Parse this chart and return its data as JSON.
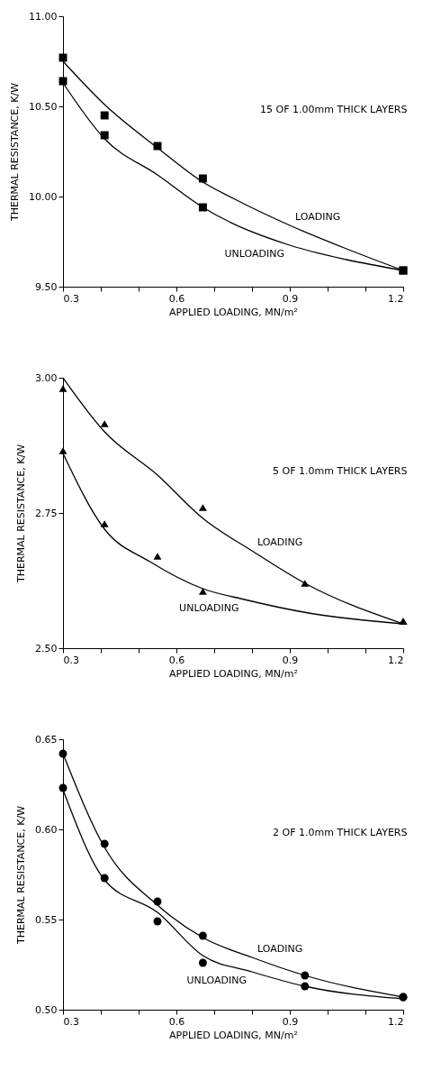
{
  "chart_data": [
    {
      "type": "scatter",
      "title": "15 OF 1.00mm THICK LAYERS",
      "xlabel": "APPLIED LOADING, MN/m²",
      "ylabel": "THERMAL RESISTANCE, K/W",
      "xlim": [
        0.3,
        1.2
      ],
      "ylim": [
        9.5,
        11.0
      ],
      "xticks": [
        0.3,
        {
          "value": 0.4,
          "label": null
        },
        {
          "value": 0.5,
          "label": null
        },
        0.6,
        {
          "value": 0.7,
          "label": null
        },
        {
          "value": 0.8,
          "label": null
        },
        0.9,
        {
          "value": 1.0,
          "label": null
        },
        {
          "value": 1.1,
          "label": null
        },
        1.2
      ],
      "yticks": [
        {
          "value": 9.5,
          "label": "9.50"
        },
        {
          "value": 10.0,
          "label": "10.00"
        },
        {
          "value": 10.5,
          "label": "10.50"
        },
        {
          "value": 11.0,
          "label": "11.00"
        }
      ],
      "series": [
        {
          "marker": "square",
          "color": "#000000",
          "x": [
            0.3,
            0.41,
            0.55,
            0.67,
            1.2
          ],
          "values": [
            10.77,
            10.45,
            10.28,
            10.1,
            9.59
          ]
        },
        {
          "marker": "square",
          "color": "#000000",
          "x": [
            0.3,
            0.41,
            0.67,
            1.2
          ],
          "values": [
            10.64,
            10.34,
            9.94,
            9.59
          ]
        },
        {
          "type": "line",
          "marker": "none",
          "name": "LOADING",
          "color": "#000000",
          "x": [
            0.3,
            0.41,
            0.55,
            0.67,
            0.75,
            0.9,
            1.05,
            1.2
          ],
          "values": [
            10.75,
            10.51,
            10.27,
            10.08,
            9.99,
            9.84,
            9.71,
            9.59
          ]
        },
        {
          "type": "line",
          "marker": "none",
          "name": "UNLOADING",
          "color": "#000000",
          "x": [
            0.3,
            0.41,
            0.55,
            0.67,
            0.9,
            1.05,
            1.2
          ],
          "values": [
            10.63,
            10.32,
            10.12,
            9.94,
            9.73,
            9.65,
            9.59
          ]
        }
      ]
    },
    {
      "type": "scatter",
      "title": "5 OF 1.0mm THICK LAYERS",
      "xlabel": "APPLIED LOADING, MN/m²",
      "ylabel": "THERMAL RESISTANCE, K/W",
      "xlim": [
        0.3,
        1.2
      ],
      "ylim": [
        2.5,
        3.0
      ],
      "xticks": [
        0.3,
        {
          "value": 0.4,
          "label": null
        },
        {
          "value": 0.5,
          "label": null
        },
        0.6,
        {
          "value": 0.7,
          "label": null
        },
        {
          "value": 0.8,
          "label": null
        },
        0.9,
        {
          "value": 1.0,
          "label": null
        },
        {
          "value": 1.1,
          "label": null
        },
        1.2
      ],
      "yticks": [
        {
          "value": 2.5,
          "label": "2.50"
        },
        2.75,
        {
          "value": 3.0,
          "label": "3.00"
        }
      ],
      "series": [
        {
          "marker": "triangle",
          "color": "#000000",
          "x": [
            0.3,
            0.41,
            0.67,
            0.94,
            1.2
          ],
          "values": [
            2.98,
            2.915,
            2.76,
            2.62,
            2.55
          ]
        },
        {
          "marker": "triangle",
          "color": "#000000",
          "x": [
            0.3,
            0.41,
            0.55,
            0.67,
            1.2
          ],
          "values": [
            2.865,
            2.73,
            2.67,
            2.605,
            2.55
          ]
        },
        {
          "type": "line",
          "marker": "none",
          "name": "LOADING",
          "color": "#000000",
          "x": [
            0.3,
            0.41,
            0.55,
            0.67,
            0.8,
            0.94,
            1.2
          ],
          "values": [
            3.0,
            2.9,
            2.82,
            2.74,
            2.68,
            2.62,
            2.545
          ]
        },
        {
          "type": "line",
          "marker": "none",
          "name": "UNLOADING",
          "color": "#000000",
          "x": [
            0.3,
            0.41,
            0.53,
            0.67,
            0.78,
            0.95,
            1.2
          ],
          "values": [
            2.86,
            2.72,
            2.66,
            2.61,
            2.59,
            2.565,
            2.545
          ]
        }
      ]
    },
    {
      "type": "scatter",
      "title": "2 OF 1.0mm THICK LAYERS",
      "xlabel": "APPLIED LOADING, MN/m²",
      "ylabel": "THERMAL RESISTANCE, K/W",
      "xlim": [
        0.3,
        1.2
      ],
      "ylim": [
        0.5,
        0.65
      ],
      "xticks": [
        0.3,
        {
          "value": 0.4,
          "label": null
        },
        {
          "value": 0.5,
          "label": null
        },
        0.6,
        {
          "value": 0.7,
          "label": null
        },
        {
          "value": 0.8,
          "label": null
        },
        0.9,
        {
          "value": 1.0,
          "label": null
        },
        {
          "value": 1.1,
          "label": null
        },
        1.2
      ],
      "yticks": [
        {
          "value": 0.5,
          "label": "0.50"
        },
        0.55,
        {
          "value": 0.6,
          "label": "0.60"
        },
        0.65
      ],
      "series": [
        {
          "marker": "circle",
          "color": "#000000",
          "x": [
            0.3,
            0.41,
            0.55,
            0.67,
            0.94,
            1.2
          ],
          "values": [
            0.642,
            0.592,
            0.56,
            0.541,
            0.519,
            0.507
          ]
        },
        {
          "marker": "circle",
          "color": "#000000",
          "x": [
            0.3,
            0.41,
            0.55,
            0.67,
            0.94,
            1.2
          ],
          "values": [
            0.623,
            0.573,
            0.549,
            0.526,
            0.513,
            0.507
          ]
        },
        {
          "type": "line",
          "marker": "none",
          "name": "LOADING",
          "color": "#000000",
          "x": [
            0.3,
            0.41,
            0.55,
            0.67,
            0.8,
            0.94,
            1.2
          ],
          "values": [
            0.642,
            0.59,
            0.558,
            0.54,
            0.529,
            0.519,
            0.507
          ]
        },
        {
          "type": "line",
          "marker": "none",
          "name": "UNLOADING",
          "color": "#000000",
          "x": [
            0.3,
            0.41,
            0.55,
            0.67,
            0.8,
            0.94,
            1.2
          ],
          "values": [
            0.622,
            0.572,
            0.554,
            0.53,
            0.521,
            0.513,
            0.506
          ]
        }
      ]
    }
  ]
}
